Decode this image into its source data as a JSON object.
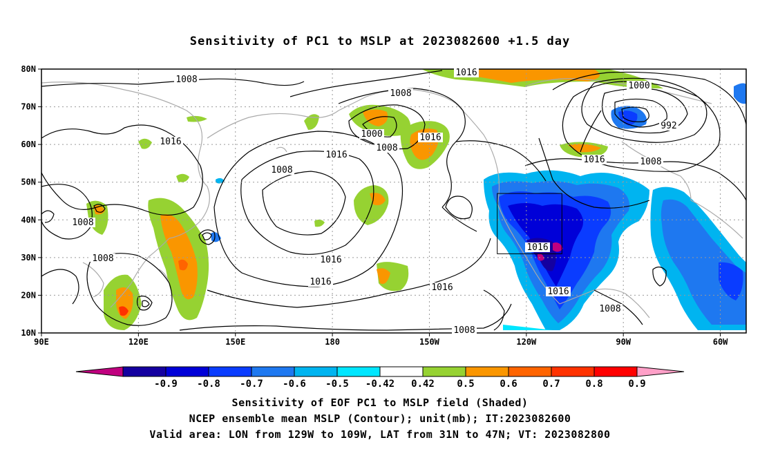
{
  "title": "Sensitivity of PC1 to MSLP at 2023082600 +1.5 day",
  "map": {
    "lat_labels": [
      "80N",
      "70N",
      "60N",
      "50N",
      "40N",
      "30N",
      "20N",
      "10N"
    ],
    "lon_labels": [
      "90E",
      "120E",
      "150E",
      "180",
      "150W",
      "120W",
      "90W",
      "60W"
    ],
    "contour_labels": [
      {
        "text": "1016"
      },
      {
        "text": "1008"
      },
      {
        "text": "1000"
      },
      {
        "text": "1008"
      },
      {
        "text": "1000"
      },
      {
        "text": "992"
      },
      {
        "text": "1016"
      },
      {
        "text": "1016"
      },
      {
        "text": "1016"
      },
      {
        "text": "1008"
      },
      {
        "text": "1008"
      },
      {
        "text": "1016"
      },
      {
        "text": "1008"
      },
      {
        "text": "1008"
      },
      {
        "text": "1008"
      },
      {
        "text": "1016"
      },
      {
        "text": "1016"
      },
      {
        "text": "1016"
      },
      {
        "text": "1016"
      },
      {
        "text": "1016"
      },
      {
        "text": "1008"
      },
      {
        "text": "1008"
      }
    ],
    "valid_area": {
      "lon_min": -129,
      "lon_max": -109,
      "lat_min": 31,
      "lat_max": 47
    }
  },
  "colorbar": {
    "labels": [
      "-0.9",
      "-0.8",
      "-0.7",
      "-0.6",
      "-0.5",
      "-0.42",
      "0.42",
      "0.5",
      "0.6",
      "0.7",
      "0.8",
      "0.9"
    ],
    "colors": [
      "#c0007f",
      "#1400a0",
      "#0000d8",
      "#0a3cff",
      "#1e78f0",
      "#00b4f0",
      "#00e6ff",
      "#ffffff",
      "#96d232",
      "#fa9600",
      "#ff6400",
      "#ff3200",
      "#ff0000",
      "#ffa0c8"
    ]
  },
  "footer": {
    "line1": "Sensitivity of EOF PC1 to MSLP field (Shaded)",
    "line2": "NCEP ensemble mean MSLP (Contour); unit(mb); IT:2023082600",
    "line3": "Valid area: LON from 129W to 109W, LAT from 31N to 47N; VT: 2023082800"
  }
}
